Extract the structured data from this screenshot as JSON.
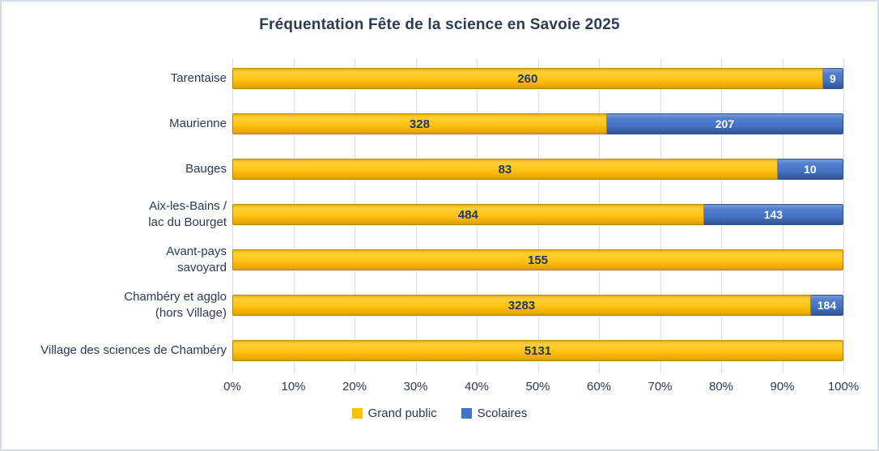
{
  "title": "Fréquentation Fête de la science en Savoie 2025",
  "colors": {
    "grand_public": "#FFC000",
    "scolaires": "#4472C4",
    "value_label_on_yellow": "#1F3864",
    "value_label_on_blue": "#FFFFFF",
    "gridline": "#D9DDE3",
    "text": "#2B3A50",
    "frame_border": "#D6DCE4",
    "background": "#FFFFFF"
  },
  "chart_data": {
    "type": "bar",
    "subtype": "horizontal-100%-stacked",
    "title": "Fréquentation Fête de la science en Savoie 2025",
    "categories": [
      "Tarentaise",
      "Maurienne",
      "Bauges",
      "Aix-les-Bains /\nlac du Bourget",
      "Avant-pays\nsavoyard",
      "Chambéry et agglo\n(hors Village)",
      "Village des sciences de Chambéry"
    ],
    "series": [
      {
        "name": "Grand public",
        "color": "#FFC000",
        "values": [
          260,
          328,
          83,
          484,
          155,
          3283,
          5131
        ]
      },
      {
        "name": "Scolaires",
        "color": "#4472C4",
        "values": [
          9,
          207,
          10,
          143,
          0,
          184,
          0
        ]
      }
    ],
    "x_axis": {
      "min": 0,
      "max": 100,
      "unit": "%",
      "tick_labels": [
        "0%",
        "10%",
        "20%",
        "30%",
        "40%",
        "50%",
        "60%",
        "70%",
        "80%",
        "90%",
        "100%"
      ]
    },
    "grid": true,
    "legend": {
      "position": "bottom",
      "entries": [
        "Grand public",
        "Scolaires"
      ]
    }
  }
}
